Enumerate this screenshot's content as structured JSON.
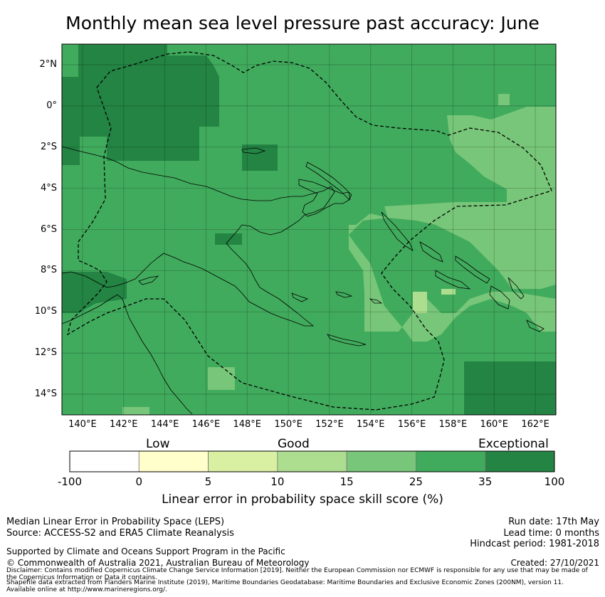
{
  "title": "Monthly mean sea level pressure past accuracy: June",
  "map": {
    "lat_labels": [
      "2°N",
      "0°",
      "2°S",
      "4°S",
      "6°S",
      "8°S",
      "10°S",
      "12°S",
      "14°S"
    ],
    "lon_labels": [
      "140°E",
      "142°E",
      "144°E",
      "146°E",
      "148°E",
      "150°E",
      "152°E",
      "154°E",
      "156°E",
      "158°E",
      "160°E",
      "162°E"
    ],
    "lat_range": [
      -15,
      3
    ],
    "lon_range": [
      139,
      163
    ],
    "colors": {
      "c0": "#ffffff",
      "c1": "#ffffcc",
      "c2": "#d9f0a3",
      "c3": "#addd8e",
      "c4": "#78c679",
      "c5": "#41ab5d",
      "c6": "#238443"
    }
  },
  "colorbar": {
    "category_labels": [
      "Low",
      "Good",
      "Exceptional"
    ],
    "tick_labels": [
      "-100",
      "0",
      "5",
      "10",
      "15",
      "25",
      "35",
      "100"
    ],
    "colors": [
      "#ffffff",
      "#ffffcc",
      "#d9f0a3",
      "#addd8e",
      "#78c679",
      "#41ab5d",
      "#238443"
    ],
    "title": "Linear error in probability space skill score (%)"
  },
  "footer": {
    "left1": "Median Linear Error in Probability Space (LEPS)",
    "left2": "Source: ACCESS-S2 and ERA5 Climate Reanalysis",
    "left3": "Supported by Climate and Oceans Support Program in the Pacific",
    "left4": "© Commonwealth of Australia 2021, Australian Bureau of Meteorology",
    "right1": "Run date: 17th May",
    "right2": "Lead time: 0 months",
    "right3": "Hindcast period: 1981-2018",
    "right4": "Created: 27/10/2021",
    "disclaimer1": "Disclaimer: Contains modified Copernicus Climate Change Service Information [2019]. Neither the European Commission nor ECMWF is responsible for any use that may be made of",
    "disclaimer2": "the Copernicus Information or Data it contains.",
    "disclaimer3": "Shapefile data extracted from Flanders Marine Institute (2019), Maritime Boundaries Geodatabase: Maritime Boundaries and Exclusive Economic Zones (200NM), version 11.",
    "disclaimer4": "Available online at http://www.marineregions.org/."
  }
}
